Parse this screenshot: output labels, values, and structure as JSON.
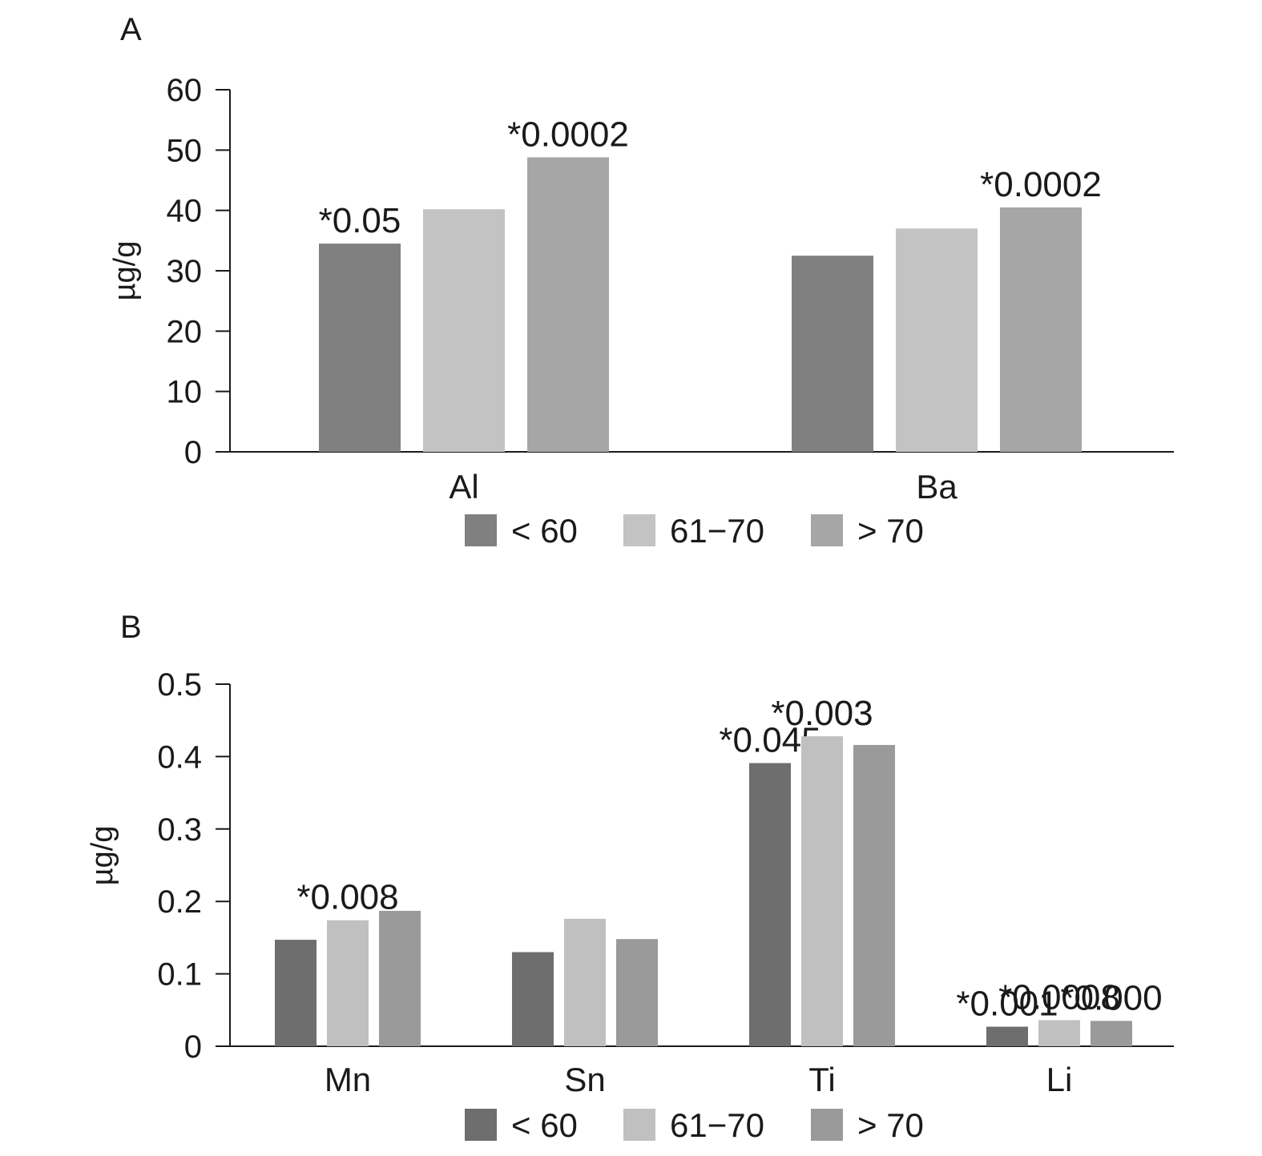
{
  "chart_data": [
    {
      "panel": "A",
      "type": "bar",
      "ylabel": "µg/g",
      "ylim": [
        0,
        60
      ],
      "yticks": [
        0,
        10,
        20,
        30,
        40,
        50,
        60
      ],
      "categories": [
        "Al",
        "Ba"
      ],
      "series": [
        {
          "name": "< 60",
          "color": "#808080",
          "values": [
            34.5,
            32.5
          ],
          "annotations": [
            "*0.05",
            ""
          ]
        },
        {
          "name": "61−70",
          "color": "#c3c3c3",
          "values": [
            40.2,
            37.0
          ],
          "annotations": [
            "",
            ""
          ]
        },
        {
          "name": "> 70",
          "color": "#a6a6a6",
          "values": [
            48.8,
            40.5
          ],
          "annotations": [
            "*0.0002",
            "*0.0002"
          ]
        }
      ],
      "legend": "bottom"
    },
    {
      "panel": "B",
      "type": "bar",
      "ylabel": "µg/g",
      "ylim": [
        0,
        0.5
      ],
      "yticks": [
        "0",
        "0.1",
        "0.2",
        "0.3",
        "0.4",
        "0.5"
      ],
      "categories": [
        "Mn",
        "Sn",
        "Ti",
        "Li"
      ],
      "series": [
        {
          "name": "< 60",
          "color": "#6e6e6e",
          "values": [
            0.147,
            0.13,
            0.391,
            0.027
          ],
          "annotations": [
            "",
            "",
            "*0.045",
            "*0.001"
          ]
        },
        {
          "name": "61−70",
          "color": "#c0c0c0",
          "values": [
            0.174,
            0.176,
            0.428,
            0.036
          ],
          "annotations": [
            "*0.008",
            "",
            "*0.003",
            "*0.0008"
          ]
        },
        {
          "name": "> 70",
          "color": "#9a9a9a",
          "values": [
            0.187,
            0.148,
            0.416,
            0.035
          ],
          "annotations": [
            "",
            "",
            "",
            "*0.000"
          ]
        }
      ],
      "legend": "bottom"
    }
  ]
}
